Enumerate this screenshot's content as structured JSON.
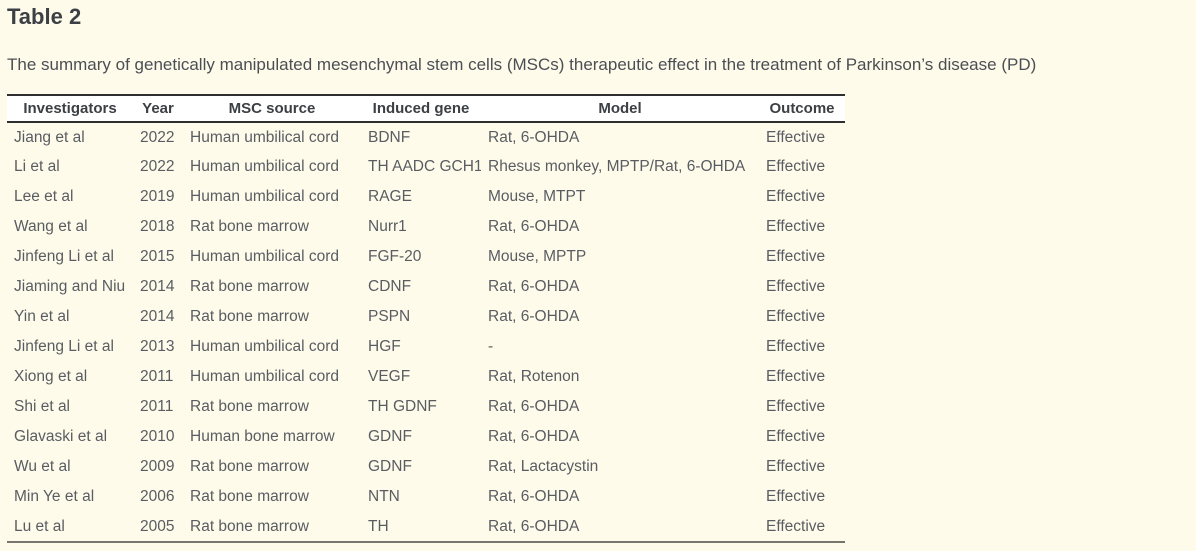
{
  "page": {
    "title": "Table 2",
    "caption": "The summary of genetically manipulated mesenchymal stem cells (MSCs) therapeutic effect in the treatment of Parkinson’s disease (PD)"
  },
  "colors": {
    "page-bg": "#fffbeb",
    "header-bg": "#ffffff",
    "border-dark": "#2f2f31",
    "border-bottom": "#76766f",
    "title-color": "#3c4045",
    "caption-color": "#4b4f54",
    "header-text": "#3c4045",
    "body-text": "#595d62"
  },
  "table": {
    "columns": [
      "Investigators",
      "Year",
      "MSC source",
      "Induced gene",
      "Model",
      "Outcome"
    ],
    "rows": [
      [
        "Jiang et al",
        "2022",
        "Human umbilical cord",
        "BDNF",
        "Rat, 6-OHDA",
        "Effective"
      ],
      [
        "Li et al",
        "2022",
        "Human umbilical cord",
        "TH AADC GCH1",
        "Rhesus monkey, MPTP/Rat, 6-OHDA",
        "Effective"
      ],
      [
        "Lee et al",
        "2019",
        "Human umbilical cord",
        "RAGE",
        "Mouse, MTPT",
        "Effective"
      ],
      [
        "Wang et al",
        "2018",
        "Rat bone marrow",
        "Nurr1",
        "Rat, 6-OHDA",
        "Effective"
      ],
      [
        "Jinfeng Li et al",
        "2015",
        "Human umbilical cord",
        "FGF-20",
        "Mouse, MPTP",
        "Effective"
      ],
      [
        "Jiaming and Niu",
        "2014",
        "Rat bone marrow",
        "CDNF",
        "Rat, 6-OHDA",
        "Effective"
      ],
      [
        "Yin et al",
        "2014",
        "Rat bone marrow",
        "PSPN",
        "Rat, 6-OHDA",
        "Effective"
      ],
      [
        "Jinfeng Li et al",
        "2013",
        "Human umbilical cord",
        "HGF",
        "-",
        "Effective"
      ],
      [
        "Xiong et al",
        "2011",
        "Human umbilical cord",
        "VEGF",
        "Rat, Rotenon",
        "Effective"
      ],
      [
        "Shi et al",
        "2011",
        "Rat bone marrow",
        "TH GDNF",
        "Rat, 6-OHDA",
        "Effective"
      ],
      [
        "Glavaski et al",
        "2010",
        "Human bone marrow",
        "GDNF",
        "Rat, 6-OHDA",
        "Effective"
      ],
      [
        "Wu et al",
        "2009",
        "Rat bone marrow",
        "GDNF",
        "Rat, Lactacystin",
        "Effective"
      ],
      [
        "Min Ye et al",
        "2006",
        "Rat bone marrow",
        "NTN",
        "Rat, 6-OHDA",
        "Effective"
      ],
      [
        "Lu et al",
        "2005",
        "Rat bone marrow",
        "TH",
        "Rat, 6-OHDA",
        "Effective"
      ]
    ]
  }
}
